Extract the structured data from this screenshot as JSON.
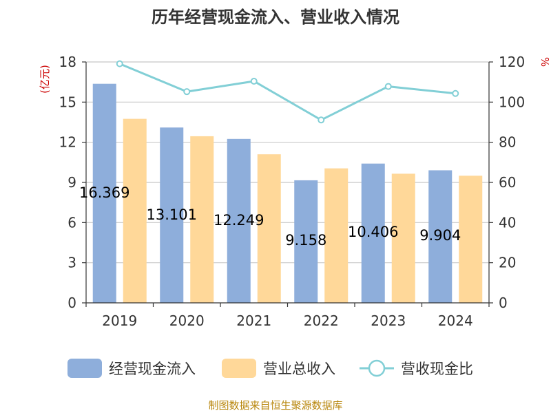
{
  "chart_data": {
    "type": "bar",
    "title": "历年经营现金流入、营业收入情况",
    "categories": [
      "2019",
      "2020",
      "2021",
      "2022",
      "2023",
      "2024"
    ],
    "series": [
      {
        "name": "经营现金流入",
        "type": "bar",
        "axis": "left",
        "color": "#8eaedb",
        "values": [
          16.369,
          13.101,
          12.249,
          9.158,
          10.406,
          9.904
        ],
        "labels": [
          "16.369",
          "13.101",
          "12.249",
          "9.158",
          "10.406",
          "9.904"
        ]
      },
      {
        "name": "营业总收入",
        "type": "bar",
        "axis": "left",
        "color": "#ffd899",
        "values": [
          13.75,
          12.45,
          11.1,
          10.05,
          9.65,
          9.5
        ]
      },
      {
        "name": "营收现金比",
        "type": "line",
        "axis": "right",
        "color": "#82cfd6",
        "values": [
          119.1,
          105.2,
          110.4,
          91.1,
          107.8,
          104.3
        ]
      }
    ],
    "y_left": {
      "unit": "(亿元)",
      "ylim": [
        0,
        18
      ],
      "ticks": [
        "0",
        "3",
        "6",
        "9",
        "12",
        "15",
        "18"
      ]
    },
    "y_right": {
      "unit": "%",
      "ylim": [
        0,
        120
      ],
      "ticks": [
        "0",
        "20",
        "40",
        "60",
        "80",
        "100",
        "120"
      ]
    },
    "grid": true,
    "legend_position": "bottom"
  },
  "source": "制图数据来自恒生聚源数据库"
}
